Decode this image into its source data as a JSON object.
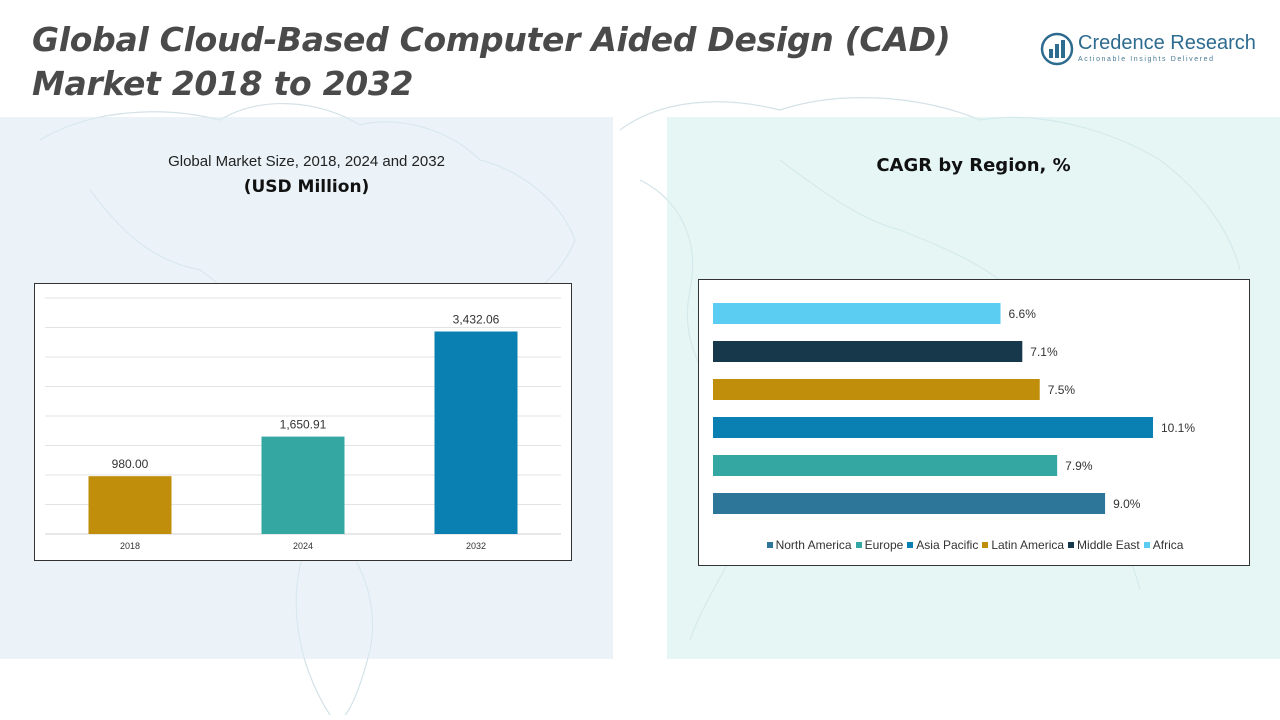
{
  "title_line1": "Global Cloud-Based Computer Aided Design (CAD)",
  "title_line2": "Market 2018 to 2032",
  "logo": {
    "name": "Credence Research",
    "tagline": "Actionable Insights Delivered",
    "icon": "bar-chart-logo-icon",
    "color": "#2d6b8f"
  },
  "left_panel": {
    "subtitle": "Global Market Size, 2018, 2024 and 2032",
    "unit_label": "(USD Million)"
  },
  "right_panel": {
    "subtitle": "CAGR by Region, %"
  },
  "chart_data": [
    {
      "type": "bar",
      "title": "Global Market Size, 2018, 2024 and 2032",
      "ylabel": "(USD Million)",
      "categories": [
        "2018",
        "2024",
        "2032"
      ],
      "values": [
        980.0,
        1650.91,
        3432.06
      ],
      "value_labels": [
        "980.00",
        "1,650.91",
        "3,432.06"
      ],
      "colors": [
        "#c08e0a",
        "#35a7a3",
        "#0a7fb2"
      ],
      "ylim": [
        0,
        4000
      ],
      "grid": true
    },
    {
      "type": "bar",
      "orientation": "horizontal",
      "title": "CAGR by Region, %",
      "categories": [
        "North America",
        "Europe",
        "Asia Pacific",
        "Latin America",
        "Middle East",
        "Africa"
      ],
      "values": [
        9.0,
        7.9,
        10.1,
        7.5,
        7.1,
        6.6
      ],
      "value_labels": [
        "9.0%",
        "7.9%",
        "10.1%",
        "7.5%",
        "7.1%",
        "6.6%"
      ],
      "colors": [
        "#2e7699",
        "#35a7a3",
        "#0a7fb2",
        "#c08e0a",
        "#17384a",
        "#5bcdf3"
      ],
      "xlim": [
        0,
        10.1
      ],
      "legend_position": "bottom",
      "grid": false
    }
  ]
}
